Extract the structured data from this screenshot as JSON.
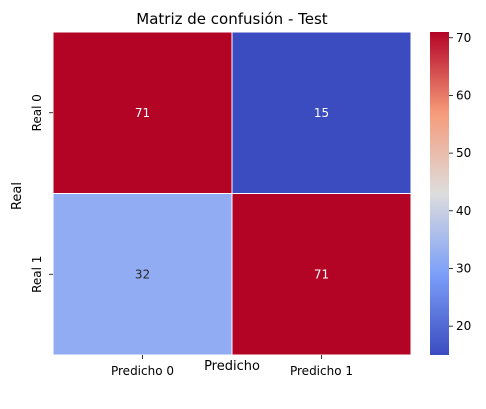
{
  "chart_data": {
    "type": "heatmap",
    "title": "Matriz de confusión - Test",
    "xlabel": "Predicho",
    "ylabel": "Real",
    "x_categories": [
      "Predicho 0",
      "Predicho 1"
    ],
    "y_categories": [
      "Real 0",
      "Real 1"
    ],
    "values": [
      [
        71,
        15
      ],
      [
        32,
        71
      ]
    ],
    "colormap": "coolwarm",
    "color_range": [
      15,
      71
    ],
    "colorbar_ticks": [
      20,
      30,
      40,
      50,
      60,
      70
    ],
    "colorbar_ticks_text": [
      "20",
      "30",
      "40",
      "50",
      "60",
      "70"
    ],
    "grid": false
  }
}
